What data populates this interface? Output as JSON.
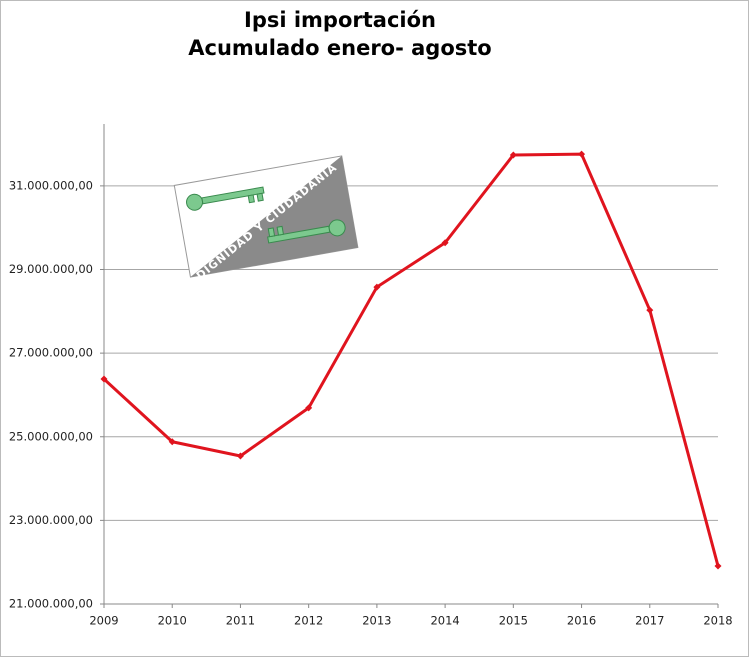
{
  "chart_data": {
    "type": "line",
    "title": "Ipsi importación",
    "subtitle": "Acumulado enero- agosto",
    "categories": [
      "2009",
      "2010",
      "2011",
      "2012",
      "2013",
      "2014",
      "2015",
      "2016",
      "2017",
      "2018"
    ],
    "series": [
      {
        "color": "#e0141e",
        "values": [
          26380000,
          24880000,
          24540000,
          25690000,
          28580000,
          29640000,
          31740000,
          31760000,
          28030000,
          21910000
        ]
      }
    ],
    "ylim": [
      21000000,
      32480000
    ],
    "yticks": [
      {
        "value": 21000000,
        "label": "21.000.000,00"
      },
      {
        "value": 23000000,
        "label": "23.000.000,00"
      },
      {
        "value": 25000000,
        "label": "25.000.000,00"
      },
      {
        "value": 27000000,
        "label": "27.000.000,00"
      },
      {
        "value": 29000000,
        "label": "29.000.000,00"
      },
      {
        "value": 31000000,
        "label": "31.000.000,00"
      }
    ],
    "grid": true,
    "watermark": "DIGNIDAD Y CIUDADANÍA"
  }
}
